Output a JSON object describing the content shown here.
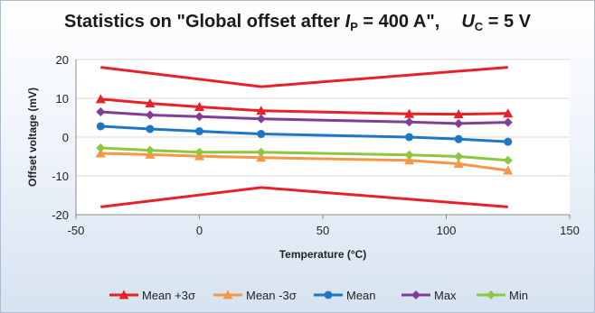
{
  "chart_data": {
    "type": "line",
    "title_parts": {
      "main": "Statistics on \"Global offset after ",
      "ip_var": "I",
      "ip_sub": "P",
      "ip_rest": " = 400 A\",",
      "uc_var": "U",
      "uc_sub": "C",
      "uc_rest": " = 5 V"
    },
    "xlabel": "Temperature (°C)",
    "ylabel": "Offset voltage (mV)",
    "xlim": [
      -50,
      150
    ],
    "ylim": [
      -20,
      20
    ],
    "xticks": [
      -50,
      0,
      50,
      100,
      150
    ],
    "yticks": [
      -20,
      -10,
      0,
      10,
      20
    ],
    "xtick_labels": [
      "-50",
      "0",
      "50",
      "100",
      "150"
    ],
    "ytick_labels": [
      "-20",
      "-10",
      "0",
      "10",
      "20"
    ],
    "grid": "horizontal",
    "legend_position": "bottom",
    "limit_lines": [
      {
        "x": [
          -40,
          25,
          125
        ],
        "y": [
          18,
          13,
          18
        ],
        "color": "#e8202a"
      },
      {
        "x": [
          -40,
          25,
          125
        ],
        "y": [
          -18,
          -13,
          -18
        ],
        "color": "#e8202a"
      }
    ],
    "series": [
      {
        "name": "Mean +3σ",
        "color": "#e8202a",
        "marker": "triangle",
        "x": [
          -40,
          -20,
          0,
          25,
          85,
          105,
          125
        ],
        "y": [
          9.8,
          8.7,
          7.8,
          6.8,
          6.0,
          5.9,
          6.1
        ]
      },
      {
        "name": "Mean -3σ",
        "color": "#f79646",
        "marker": "triangle",
        "x": [
          -40,
          -20,
          0,
          25,
          85,
          105,
          125
        ],
        "y": [
          -4.2,
          -4.5,
          -4.9,
          -5.3,
          -6.0,
          -6.9,
          -8.6
        ]
      },
      {
        "name": "Mean",
        "color": "#1f77c4",
        "marker": "circle",
        "x": [
          -40,
          -20,
          0,
          25,
          85,
          105,
          125
        ],
        "y": [
          2.8,
          2.1,
          1.5,
          0.8,
          0.0,
          -0.5,
          -1.2
        ]
      },
      {
        "name": "Max",
        "color": "#7f3f98",
        "marker": "diamond",
        "x": [
          -40,
          -20,
          0,
          25,
          85,
          105,
          125
        ],
        "y": [
          6.5,
          5.7,
          5.3,
          4.7,
          3.9,
          3.5,
          3.8
        ]
      },
      {
        "name": "Min",
        "color": "#8dc63f",
        "marker": "diamond",
        "x": [
          -40,
          -20,
          0,
          25,
          85,
          105,
          125
        ],
        "y": [
          -2.8,
          -3.4,
          -3.9,
          -3.9,
          -4.6,
          -5.0,
          -6.0
        ]
      }
    ]
  }
}
